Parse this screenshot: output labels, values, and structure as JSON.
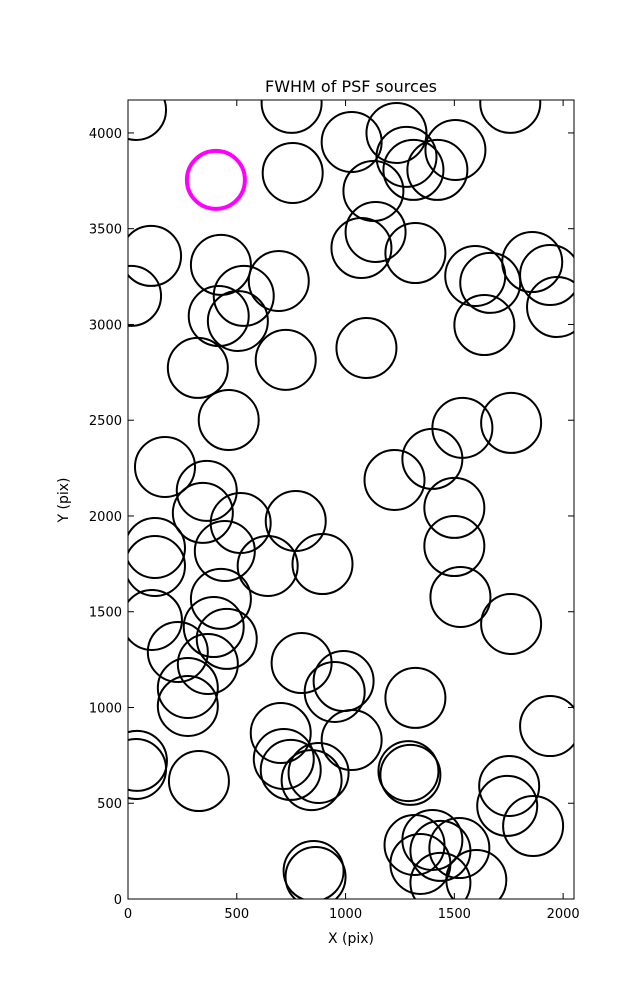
{
  "chart_data": {
    "type": "scatter",
    "title": "FWHM of PSF sources",
    "x_label": "X (pix)",
    "y_label": "Y (pix)",
    "xlim": [
      0,
      2050
    ],
    "ylim": [
      0,
      4172
    ],
    "xticks": [
      0,
      500,
      1000,
      1500,
      2000
    ],
    "yticks": [
      0,
      500,
      1000,
      1500,
      2000,
      2500,
      3000,
      3500,
      4000
    ],
    "series": [
      {
        "color": "#000000",
        "x": [
          37,
          752,
          1757,
          1028,
          1234,
          1280,
          1505,
          1312,
          1422,
          1128,
          757,
          1138,
          1073,
          1321,
          106,
          427,
          14,
          693,
          532,
          417,
          505,
          1596,
          1665,
          1858,
          1940,
          1972,
          1638,
          1096,
          725,
          321,
          463,
          1537,
          1761,
          1399,
          1225,
          170,
          362,
          344,
          518,
          771,
          124,
          124,
          445,
          1500,
          1500,
          642,
          894,
          1528,
          110,
          427,
          394,
          454,
          229,
          367,
          275,
          275,
          798,
          991,
          950,
          1761,
          1321,
          1940,
          702,
          1028,
          716,
          748,
          876,
          844,
          41,
          37,
          326,
          1289,
          1298,
          1752,
          1743,
          1862,
          1317,
          1399,
          1436,
          1523,
          1344,
          1436,
          1601,
          853,
          862
        ],
        "values": [
          4120,
          4157,
          4157,
          3953,
          4000,
          3875,
          3911,
          3807,
          3807,
          3697,
          3791,
          3483,
          3399,
          3373,
          3358,
          3311,
          3149,
          3227,
          3149,
          3044,
          3018,
          3253,
          3217,
          3326,
          3258,
          3091,
          2997,
          2877,
          2815,
          2773,
          2501,
          2460,
          2486,
          2298,
          2188,
          2256,
          2131,
          2016,
          1963,
          1974,
          1833,
          1739,
          1817,
          2042,
          1843,
          1739,
          1749,
          1577,
          1457,
          1567,
          1420,
          1358,
          1290,
          1227,
          1102,
          1008,
          1232,
          1138,
          1081,
          1436,
          1050,
          903,
          867,
          830,
          731,
          674,
          658,
          621,
          721,
          679,
          616,
          668,
          648,
          590,
          486,
          381,
          282,
          308,
          251,
          266,
          183,
          84,
          99,
          146,
          115
        ]
      },
      {
        "color": "#ff00ff",
        "x": [
          404
        ],
        "values": [
          3755
        ]
      }
    ]
  }
}
